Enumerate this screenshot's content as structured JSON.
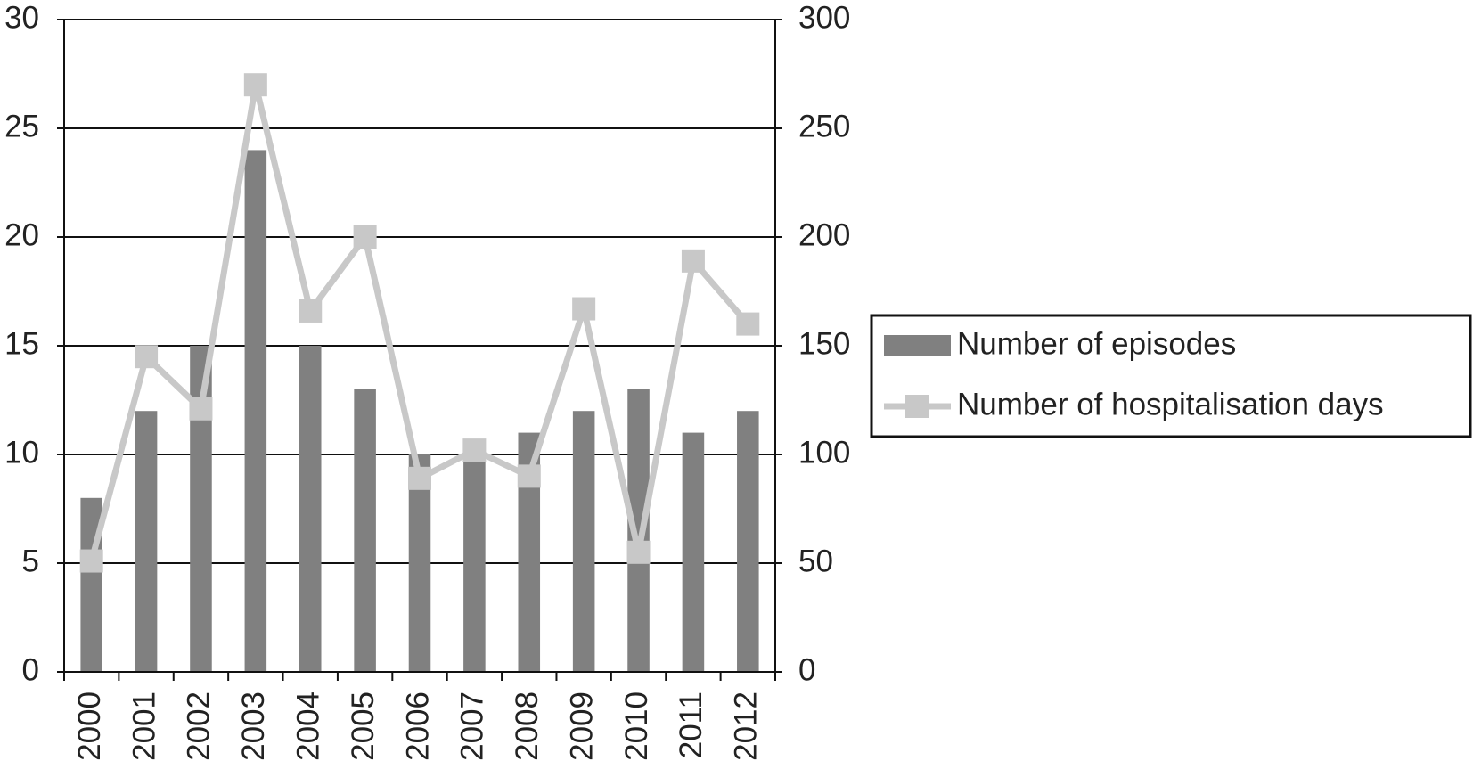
{
  "chart_data": {
    "type": "bar",
    "categories": [
      "2000",
      "2001",
      "2002",
      "2003",
      "2004",
      "2005",
      "2006",
      "2007",
      "2008",
      "2009",
      "2010",
      "2011",
      "2012"
    ],
    "series": [
      {
        "name": "Number of episodes",
        "type": "bar",
        "color": "#808080",
        "values": [
          8,
          12,
          15,
          24,
          15,
          13,
          10,
          10,
          11,
          12,
          13,
          11,
          12
        ]
      },
      {
        "name": "Number of hospitalisation days",
        "type": "line",
        "axis": "y2",
        "color": "#c8c8c8",
        "values": [
          51,
          145,
          121,
          270,
          166,
          200,
          89,
          102,
          90,
          167,
          55,
          189,
          160
        ]
      }
    ],
    "ylim": [
      0,
      30
    ],
    "yticks": [
      0,
      5,
      10,
      15,
      20,
      25,
      30
    ],
    "y2lim": [
      0,
      300
    ],
    "y2ticks": [
      0,
      50,
      100,
      150,
      200,
      250,
      300
    ],
    "grid": true,
    "legend": "right"
  }
}
